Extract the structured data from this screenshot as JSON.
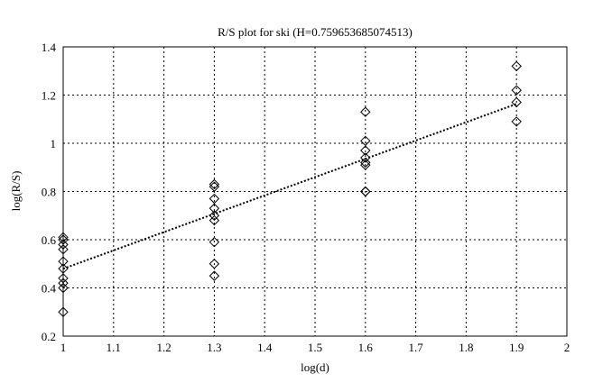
{
  "chart_data": {
    "type": "scatter",
    "title": "R/S plot for ski (H=0.759653685074513)",
    "xlabel": "log(d)",
    "ylabel": "log(R/S)",
    "xlim": [
      1,
      2
    ],
    "ylim": [
      0.2,
      1.4
    ],
    "xticks": [
      "1",
      "1.1",
      "1.2",
      "1.3",
      "1.4",
      "1.5",
      "1.6",
      "1.7",
      "1.8",
      "1.9",
      "2"
    ],
    "yticks": [
      "0.2",
      "0.4",
      "0.6",
      "0.8",
      "1",
      "1.2",
      "1.4"
    ],
    "grid": true,
    "marker": "diamond",
    "points": [
      [
        1,
        0.61
      ],
      [
        1,
        0.6
      ],
      [
        1,
        0.58
      ],
      [
        1,
        0.56
      ],
      [
        1,
        0.51
      ],
      [
        1,
        0.48
      ],
      [
        1,
        0.44
      ],
      [
        1,
        0.42
      ],
      [
        1,
        0.4
      ],
      [
        1,
        0.3
      ],
      [
        1.3,
        0.83
      ],
      [
        1.3,
        0.82
      ],
      [
        1.3,
        0.77
      ],
      [
        1.3,
        0.73
      ],
      [
        1.3,
        0.7
      ],
      [
        1.3,
        0.68
      ],
      [
        1.3,
        0.59
      ],
      [
        1.3,
        0.5
      ],
      [
        1.3,
        0.45
      ],
      [
        1.6,
        1.13
      ],
      [
        1.6,
        1.01
      ],
      [
        1.6,
        0.97
      ],
      [
        1.6,
        0.94
      ],
      [
        1.6,
        0.92
      ],
      [
        1.6,
        0.91
      ],
      [
        1.6,
        0.8
      ],
      [
        1.6,
        0.8
      ],
      [
        1.9,
        1.32
      ],
      [
        1.9,
        1.22
      ],
      [
        1.9,
        1.17
      ],
      [
        1.9,
        1.09
      ]
    ],
    "fit_line": {
      "slope": 0.759653685074513,
      "intercept": -0.28,
      "x_range": [
        1,
        1.9
      ],
      "style": "dotted"
    }
  }
}
